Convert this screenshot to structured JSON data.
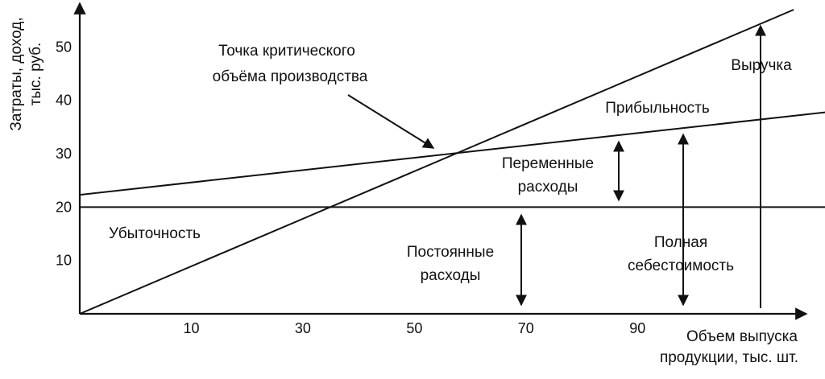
{
  "chart_data": {
    "type": "line",
    "title": "",
    "ylabel_lines": [
      "Затраты, доход,",
      "тыс. руб."
    ],
    "xlabel_lines": [
      "Объем выпуска",
      "продукции, тыс. шт."
    ],
    "x_ticks": [
      10,
      30,
      50,
      70,
      90
    ],
    "y_ticks": [
      10,
      20,
      30,
      40,
      50
    ],
    "xlim": [
      -10,
      120
    ],
    "ylim": [
      0,
      57
    ],
    "grid": false,
    "legend": "none",
    "series": [
      {
        "x": [
          -10,
          118
        ],
        "y": [
          0,
          57
        ]
      },
      {
        "x": [
          -10,
          124
        ],
        "y": [
          22.3,
          37.8
        ]
      },
      {
        "x": [
          -10,
          124
        ],
        "y": [
          20,
          20
        ]
      }
    ],
    "break_even": {
      "x": 56,
      "y": 30
    },
    "annotations": {
      "break_even_lines": [
        "Точка критического",
        "объёма производства"
      ],
      "revenue": "Выручка",
      "profit": "Прибыльность",
      "variable_costs_lines": [
        "Переменные",
        "расходы"
      ],
      "loss": "Убыточность",
      "fixed_costs_lines": [
        "Постоянные",
        "расходы"
      ],
      "total_cost_lines": [
        "Полная",
        "себестоимость"
      ]
    }
  }
}
